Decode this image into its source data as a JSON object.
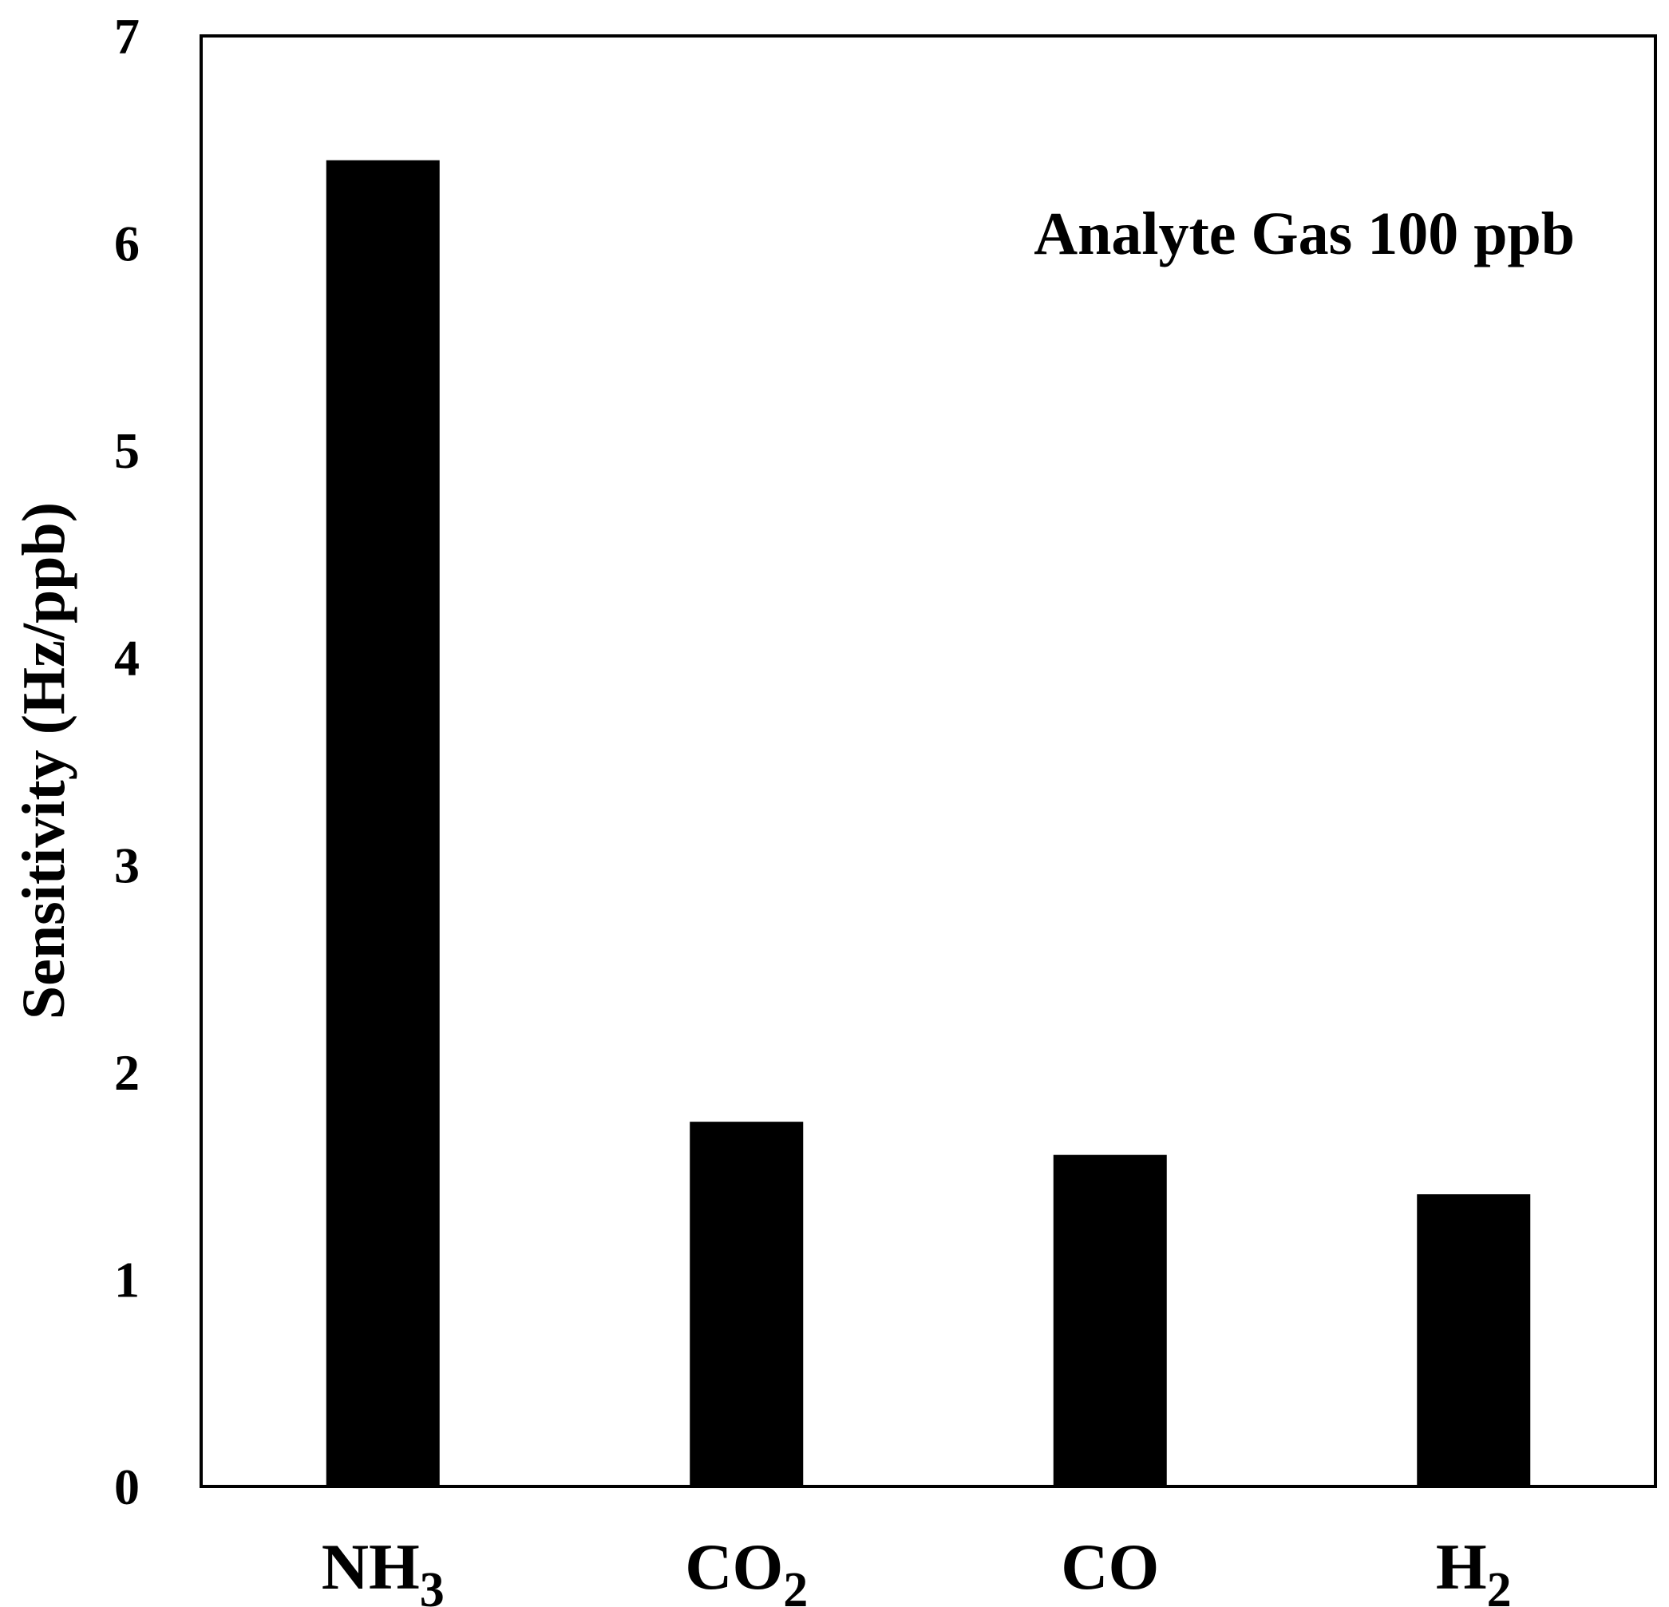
{
  "chart_data": {
    "type": "bar",
    "categories": [
      {
        "base": "NH",
        "sub": "3"
      },
      {
        "base": "CO",
        "sub": "2"
      },
      {
        "base": "CO",
        "sub": ""
      },
      {
        "base": "H",
        "sub": "2"
      }
    ],
    "values": [
      6.4,
      1.76,
      1.6,
      1.41
    ],
    "ylabel": "Sensitivity (Hz/ppb)",
    "xlabel": "",
    "title": "",
    "ylim": [
      0,
      7
    ],
    "yticks": [
      "0",
      "1",
      "2",
      "3",
      "4",
      "5",
      "6",
      "7"
    ],
    "annotation": "Analyte Gas 100 ppb",
    "bar_color": "#000000",
    "grid": false,
    "legend": "none"
  }
}
